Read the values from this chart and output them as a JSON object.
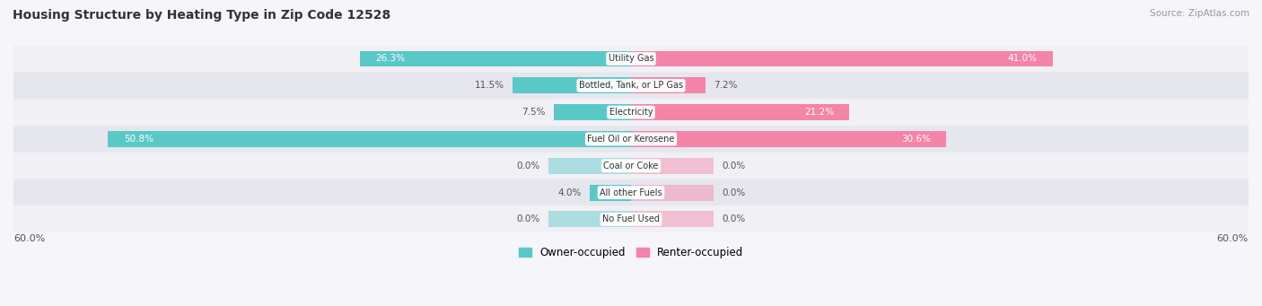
{
  "title": "Housing Structure by Heating Type in Zip Code 12528",
  "source": "Source: ZipAtlas.com",
  "categories": [
    "Utility Gas",
    "Bottled, Tank, or LP Gas",
    "Electricity",
    "Fuel Oil or Kerosene",
    "Coal or Coke",
    "All other Fuels",
    "No Fuel Used"
  ],
  "owner_values": [
    26.3,
    11.5,
    7.5,
    50.8,
    0.0,
    4.0,
    0.0
  ],
  "renter_values": [
    41.0,
    7.2,
    21.2,
    30.6,
    0.0,
    0.0,
    0.0
  ],
  "owner_color": "#5bc8c8",
  "renter_color": "#f484a8",
  "row_bg_light": "#f0f0f5",
  "row_bg_dark": "#e6e6ee",
  "title_color": "#333333",
  "source_color": "#999999",
  "value_color_outside": "#555555",
  "value_color_inside": "#ffffff",
  "x_max": 60.0,
  "x_min": -60.0,
  "axis_label": "60.0%",
  "legend_owner": "Owner-occupied",
  "legend_renter": "Renter-occupied",
  "zero_bar_width": 8.0,
  "threshold_inside": 12.0
}
